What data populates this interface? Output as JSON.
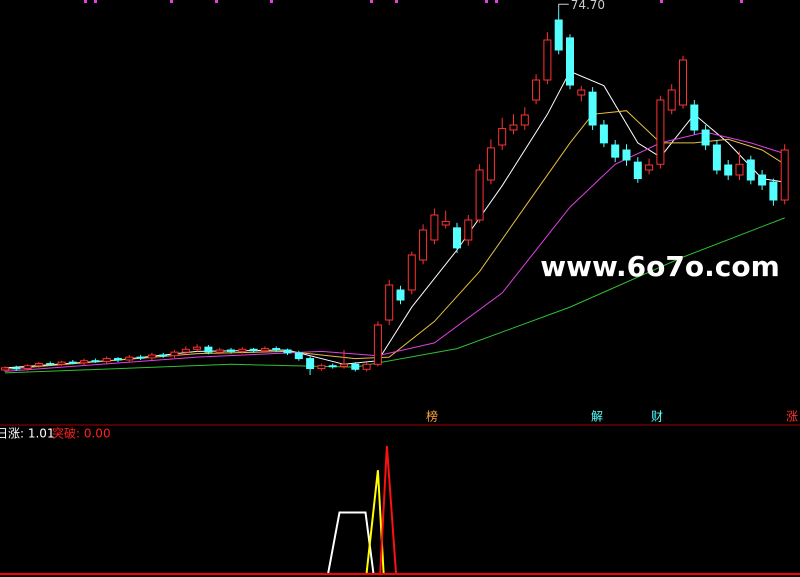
{
  "chart_data": {
    "type": "candlestick",
    "ylim": [
      20,
      76
    ],
    "up_color": "#ff3232",
    "down_color": "#54ffff",
    "high_label": "74.70",
    "candles": {
      "open": [
        24.2,
        24.5,
        24.4,
        24.8,
        25.1,
        25.0,
        25.3,
        25.2,
        25.5,
        25.4,
        25.8,
        25.6,
        26.0,
        25.9,
        26.3,
        26.2,
        26.7,
        27.1,
        27.4,
        26.7,
        27.0,
        26.8,
        27.1,
        26.9,
        27.2,
        27.0,
        26.6,
        25.8,
        24.4,
        24.8,
        24.7,
        25.0,
        24.3,
        25.0,
        31.2,
        35.4,
        35.4,
        39.6,
        42.4,
        44.5,
        44.1,
        42.4,
        45.2,
        50.8,
        55.7,
        57.8,
        58.5,
        62.0,
        64.8,
        73.2,
        70.7,
        62.7,
        63.1,
        58.5,
        55.7,
        55.0,
        53.3,
        52.2,
        53.0,
        60.6,
        61.3,
        61.3,
        57.8,
        55.7,
        52.9,
        51.5,
        53.6,
        51.5,
        50.5,
        48.0
      ],
      "close": [
        24.5,
        24.4,
        24.8,
        25.1,
        25.0,
        25.3,
        25.2,
        25.5,
        25.4,
        25.8,
        25.6,
        26.0,
        25.9,
        26.3,
        26.2,
        26.7,
        27.1,
        27.4,
        26.7,
        27.0,
        26.8,
        27.1,
        26.9,
        27.2,
        27.0,
        26.6,
        25.8,
        24.4,
        24.8,
        24.7,
        25.0,
        24.3,
        25.0,
        30.5,
        36.1,
        34.0,
        40.3,
        43.8,
        45.9,
        45.0,
        41.3,
        45.2,
        52.2,
        55.3,
        58.0,
        58.5,
        59.9,
        64.8,
        70.4,
        69.0,
        64.1,
        63.4,
        58.5,
        56.0,
        54.0,
        53.6,
        51.0,
        52.9,
        62.0,
        63.4,
        67.6,
        57.8,
        55.7,
        52.2,
        51.5,
        53.0,
        50.8,
        50.1,
        48.0,
        55.0
      ],
      "high": [
        24.7,
        24.8,
        25.0,
        25.3,
        25.4,
        25.5,
        25.6,
        25.8,
        25.8,
        26.1,
        26.0,
        26.3,
        26.3,
        26.6,
        26.6,
        27.0,
        27.5,
        27.8,
        27.7,
        27.3,
        27.3,
        27.4,
        27.3,
        27.5,
        27.5,
        27.2,
        26.9,
        26.1,
        25.1,
        25.1,
        27.0,
        25.3,
        25.3,
        31.0,
        36.8,
        36.0,
        40.8,
        44.6,
        46.8,
        46.5,
        44.8,
        45.9,
        53.0,
        56.5,
        59.5,
        60.0,
        61.0,
        65.6,
        71.5,
        74.7,
        71.2,
        64.0,
        63.8,
        59.2,
        56.4,
        55.8,
        54.0,
        53.8,
        62.6,
        64.2,
        68.2,
        62.0,
        58.5,
        56.4,
        53.6,
        54.8,
        54.2,
        52.2,
        51.0,
        55.8
      ],
      "low": [
        23.9,
        24.1,
        24.1,
        24.5,
        24.8,
        24.8,
        25.0,
        24.9,
        25.2,
        25.1,
        25.3,
        25.3,
        25.6,
        25.6,
        25.9,
        25.9,
        26.4,
        26.8,
        26.4,
        26.4,
        26.5,
        26.5,
        26.6,
        26.6,
        26.7,
        26.3,
        25.5,
        23.5,
        24.1,
        24.4,
        24.4,
        24.0,
        24.0,
        24.7,
        30.5,
        33.4,
        34.8,
        39.0,
        41.8,
        44.0,
        40.6,
        41.6,
        44.8,
        50.2,
        55.0,
        57.2,
        57.8,
        61.4,
        64.2,
        68.4,
        63.5,
        61.8,
        57.8,
        55.4,
        53.3,
        52.8,
        50.4,
        51.6,
        52.4,
        60.0,
        60.8,
        57.2,
        55.0,
        51.6,
        50.8,
        50.8,
        50.2,
        49.4,
        47.2,
        47.4
      ]
    },
    "lines": [
      {
        "color": "#ffffff",
        "x": [
          0,
          10,
          17,
          25,
          30,
          33,
          36,
          40,
          44,
          48,
          50,
          53,
          56,
          58,
          61,
          64,
          67,
          69
        ],
        "values": [
          24.5,
          25.6,
          26.8,
          27.0,
          25.0,
          25.5,
          33,
          41,
          50,
          60,
          66,
          64,
          56,
          54,
          60,
          56,
          51,
          50.5
        ]
      },
      {
        "color": "#e8c040",
        "x": [
          0,
          17,
          25,
          31,
          34,
          38,
          42,
          46,
          50,
          52,
          55,
          58,
          61,
          64,
          67,
          69
        ],
        "values": [
          24.3,
          26.5,
          26.8,
          25.8,
          26,
          31,
          38,
          47,
          56,
          60,
          60.5,
          56,
          56,
          56.5,
          55,
          53
        ]
      },
      {
        "color": "#e040e0",
        "x": [
          0,
          17,
          28,
          33,
          38,
          44,
          50,
          54,
          58,
          62,
          66,
          69
        ],
        "values": [
          24.0,
          26.0,
          26.8,
          26.2,
          28,
          35,
          47,
          53,
          56,
          57.5,
          56,
          54.5
        ]
      },
      {
        "color": "#30c030",
        "x": [
          0,
          20,
          31,
          40,
          50,
          60,
          69
        ],
        "values": [
          23.8,
          25.0,
          24.6,
          27.2,
          33,
          40,
          45.5
        ]
      }
    ],
    "annotations": [
      {
        "text": "榜",
        "color": "#ffa040"
      },
      {
        "text": "解",
        "color": "#54ffff"
      },
      {
        "text": "财",
        "color": "#54ffff"
      },
      {
        "text": "涨",
        "color": "#ff3232"
      }
    ],
    "watermark": "www.6o7o.com",
    "indicator": {
      "ylim": [
        0,
        1.1
      ],
      "legend": [
        {
          "text": "日涨: 1.01",
          "color": "#ffffff"
        },
        {
          "text": "突破: 0.00",
          "color": "#ff2020"
        }
      ],
      "series": [
        {
          "color": "#ffffff",
          "x": [
            28.6,
            29.6,
            31.9,
            32.6
          ],
          "values": [
            0,
            0.5,
            0.5,
            0
          ]
        },
        {
          "color": "#ffff00",
          "x": [
            32.0,
            33.0,
            33.5
          ],
          "values": [
            0,
            0.85,
            0
          ]
        },
        {
          "color": "#ff1010",
          "x": [
            33.2,
            33.8,
            34.6
          ],
          "values": [
            0,
            1.05,
            0
          ]
        }
      ]
    }
  }
}
